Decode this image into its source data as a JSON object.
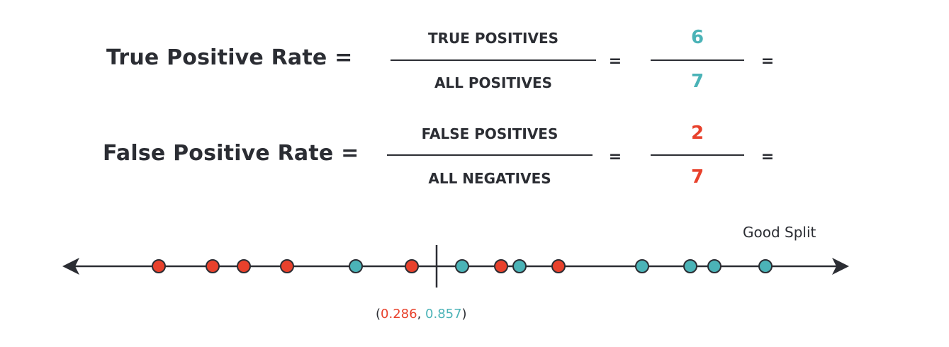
{
  "tpr": {
    "label": "True Positive Rate =",
    "numerator": "TRUE POSITIVES",
    "denominator": "ALL POSITIVES",
    "equals1": "=",
    "value_num": "6",
    "value_den": "7",
    "equals2": "="
  },
  "fpr": {
    "label": "False Positive Rate =",
    "numerator": "FALSE POSITIVES",
    "denominator": "ALL NEGATIVES",
    "equals1": "=",
    "value_num": "2",
    "value_den": "7",
    "equals2": "="
  },
  "number_line": {
    "split_label": "Good Split",
    "coord": {
      "open": "(",
      "fpr": "0.286",
      "sep": ", ",
      "tpr": "0.857",
      "close": ")"
    },
    "points": [
      "red",
      "red",
      "red",
      "red",
      "teal",
      "red",
      "teal",
      "red",
      "teal",
      "red",
      "teal",
      "teal",
      "teal",
      "teal"
    ]
  },
  "colors": {
    "teal": "#4bb3b7",
    "red": "#e8412c",
    "text": "#2b2d33"
  }
}
